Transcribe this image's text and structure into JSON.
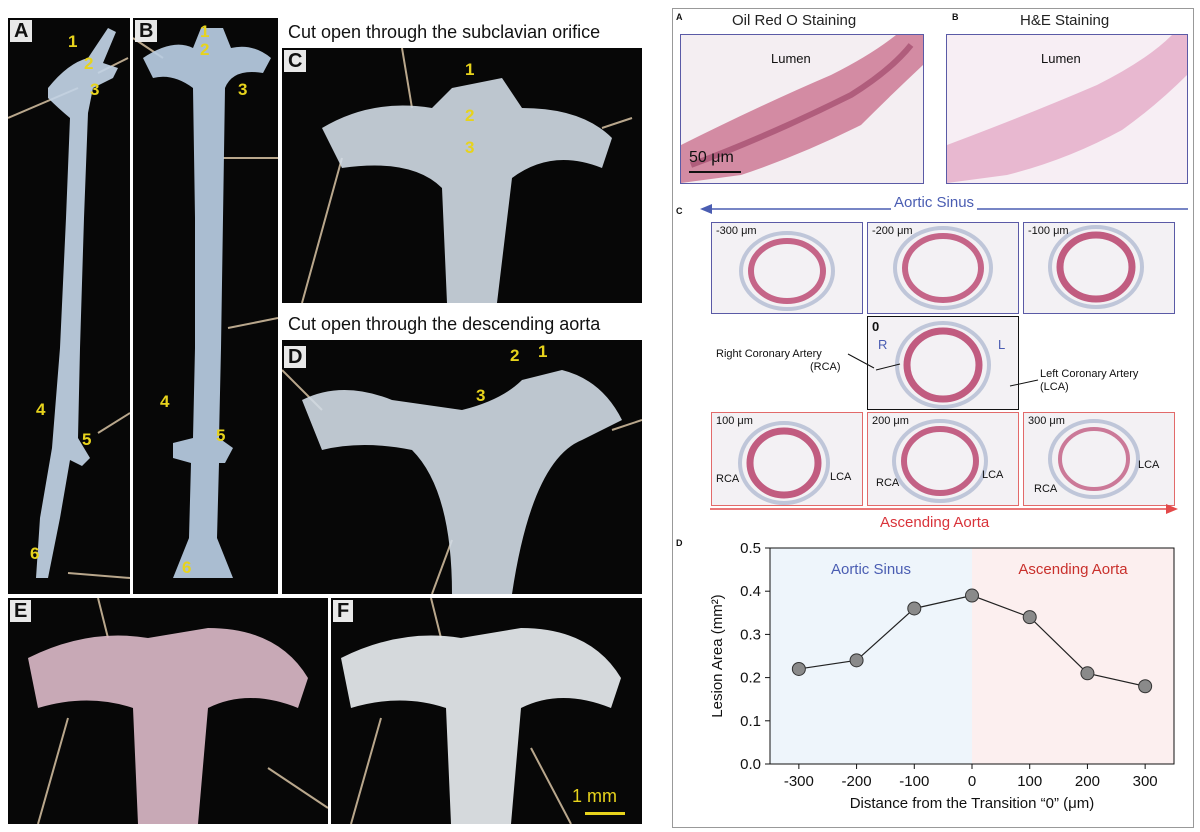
{
  "left_figure": {
    "panels": {
      "a": "A",
      "b": "B",
      "c": "C",
      "d": "D",
      "e": "E",
      "f": "F"
    },
    "caption_c": "Cut open through the subclavian orifice",
    "caption_d": "Cut open through the descending aorta",
    "scale_bar": "1 mm",
    "markers": {
      "m1": "1",
      "m2": "2",
      "m3": "3",
      "m4": "4",
      "m5": "5",
      "m6": "6"
    }
  },
  "right_figure": {
    "panels": {
      "a": "A",
      "b": "B",
      "c": "C",
      "d": "D"
    },
    "stain_a": "Oil Red O Staining",
    "stain_b": "H&E Staining",
    "lumen": "Lumen",
    "scale_bar": "50 μm",
    "aortic_sinus": "Aortic Sinus",
    "ascending_aorta": "Ascending Aorta",
    "sections": {
      "m300": "-300 μm",
      "m200": "-200 μm",
      "m100": "-100 μm",
      "zero": "0",
      "p100": "100 μm",
      "p200": "200 μm",
      "p300": "300 μm"
    },
    "r": "R",
    "l": "L",
    "rca_label": "Right Coronary Artery",
    "rca_abbr": "(RCA)",
    "lca_label": "Left Coronary Artery",
    "lca_abbr": "(LCA)",
    "rca": "RCA",
    "lca": "LCA"
  },
  "chart_data": {
    "type": "line",
    "x": [
      -300,
      -200,
      -100,
      0,
      100,
      200,
      300
    ],
    "values": [
      0.22,
      0.24,
      0.36,
      0.39,
      0.34,
      0.21,
      0.18
    ],
    "xlabel": "Distance from the Transition “0” (μm)",
    "ylabel": "Lesion Area (mm²)",
    "xlim": [
      -350,
      350
    ],
    "ylim": [
      0,
      0.5
    ],
    "xticks": [
      "-300",
      "-200",
      "-100",
      "0",
      "100",
      "200",
      "300"
    ],
    "yticks": [
      "0.0",
      "0.1",
      "0.2",
      "0.3",
      "0.4",
      "0.5"
    ],
    "regions": [
      {
        "label": "Aortic Sinus",
        "from": -350,
        "to": 0,
        "color": "#eef5fb",
        "text_color": "#4a5db2"
      },
      {
        "label": "Ascending Aorta",
        "from": 0,
        "to": 350,
        "color": "#fcefef",
        "text_color": "#c9302c"
      }
    ],
    "marker_color": "#8a8a8a",
    "grid": false
  }
}
